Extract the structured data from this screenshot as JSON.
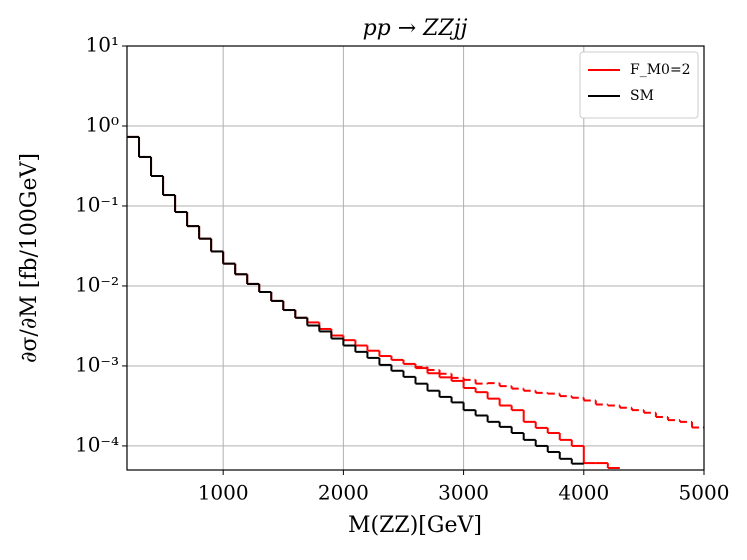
{
  "chart_data": {
    "type": "histogram",
    "title": "pp → ZZjj",
    "x_label": "M(ZZ)[GeV]",
    "y_label": "∂σ/∂M [fb/100GeV]",
    "log_y": true,
    "grid": true,
    "legend": "upper right",
    "xlim": [
      200,
      5000
    ],
    "xticks": [
      1000,
      2000,
      3000,
      4000,
      5000
    ],
    "ylim": [
      5e-05,
      10
    ],
    "yticks": [
      {
        "value": 10,
        "label": "10¹"
      },
      {
        "value": 1,
        "label": "10⁰"
      },
      {
        "value": 0.1,
        "label": "10⁻¹"
      },
      {
        "value": 0.01,
        "label": "10⁻²"
      },
      {
        "value": 0.001,
        "label": "10⁻³"
      },
      {
        "value": 0.0001,
        "label": "10⁻⁴"
      }
    ],
    "series": [
      {
        "name": "F_M0=2",
        "color": "#ff0000",
        "dash": false,
        "bins": [
          200,
          300,
          400,
          500,
          600,
          700,
          800,
          900,
          1000,
          1100,
          1200,
          1300,
          1400,
          1500,
          1600,
          1700,
          1800,
          1900,
          2000,
          2100,
          2200,
          2300,
          2400,
          2500,
          2600,
          2700,
          2800,
          2900,
          3000,
          3100,
          3200,
          3300,
          3400,
          3500,
          3600,
          3700,
          3800,
          3900,
          4000,
          4100,
          4200,
          4300
        ],
        "values": [
          0.73,
          0.41,
          0.237,
          0.137,
          0.084,
          0.056,
          0.039,
          0.027,
          0.019,
          0.014,
          0.0106,
          0.0084,
          0.0065,
          0.005,
          0.004,
          0.0035,
          0.0029,
          0.0024,
          0.0021,
          0.0018,
          0.00155,
          0.00133,
          0.00119,
          0.00106,
          0.00094,
          0.00081,
          0.00072,
          0.00065,
          0.00053,
          0.00047,
          0.00039,
          0.00032,
          0.00028,
          0.0002,
          0.000168,
          0.000145,
          0.000119,
          0.0001,
          6.1e-05,
          6.1e-05,
          5.3e-05
        ]
      },
      {
        "color": "#ff0000",
        "dash": true,
        "bins": [
          2600,
          2700,
          2800,
          2900,
          3000,
          3100,
          3200,
          3300,
          3400,
          3500,
          3600,
          3700,
          3800,
          3900,
          4000,
          4100,
          4200,
          4300,
          4400,
          4500,
          4600,
          4700,
          4800,
          4900,
          5000
        ],
        "values": [
          0.00097,
          0.00089,
          0.0008,
          0.00071,
          0.00067,
          0.0006,
          0.00061,
          0.00056,
          0.00052,
          0.00049,
          0.00046,
          0.00045,
          0.00042,
          0.0004,
          0.00037,
          0.00033,
          0.00032,
          0.0003,
          0.00028,
          0.00026,
          0.00023,
          0.00021,
          0.0002,
          0.00017
        ]
      },
      {
        "name": "SM",
        "color": "#000000",
        "dash": false,
        "bins": [
          200,
          300,
          400,
          500,
          600,
          700,
          800,
          900,
          1000,
          1100,
          1200,
          1300,
          1400,
          1500,
          1600,
          1700,
          1800,
          1900,
          2000,
          2100,
          2200,
          2300,
          2400,
          2500,
          2600,
          2700,
          2800,
          2900,
          3000,
          3100,
          3200,
          3300,
          3400,
          3500,
          3600,
          3700,
          3800,
          3900,
          4000
        ],
        "values": [
          0.73,
          0.41,
          0.237,
          0.137,
          0.084,
          0.056,
          0.039,
          0.027,
          0.019,
          0.014,
          0.0106,
          0.0084,
          0.0065,
          0.005,
          0.004,
          0.0032,
          0.0027,
          0.0022,
          0.0018,
          0.0015,
          0.00126,
          0.00103,
          0.00087,
          0.00073,
          0.0006,
          0.00049,
          0.00041,
          0.00035,
          0.00028,
          0.00024,
          0.0002,
          0.000173,
          0.000145,
          0.000119,
          0.0001,
          8.4e-05,
          6.9e-05,
          6e-05
        ]
      }
    ]
  }
}
